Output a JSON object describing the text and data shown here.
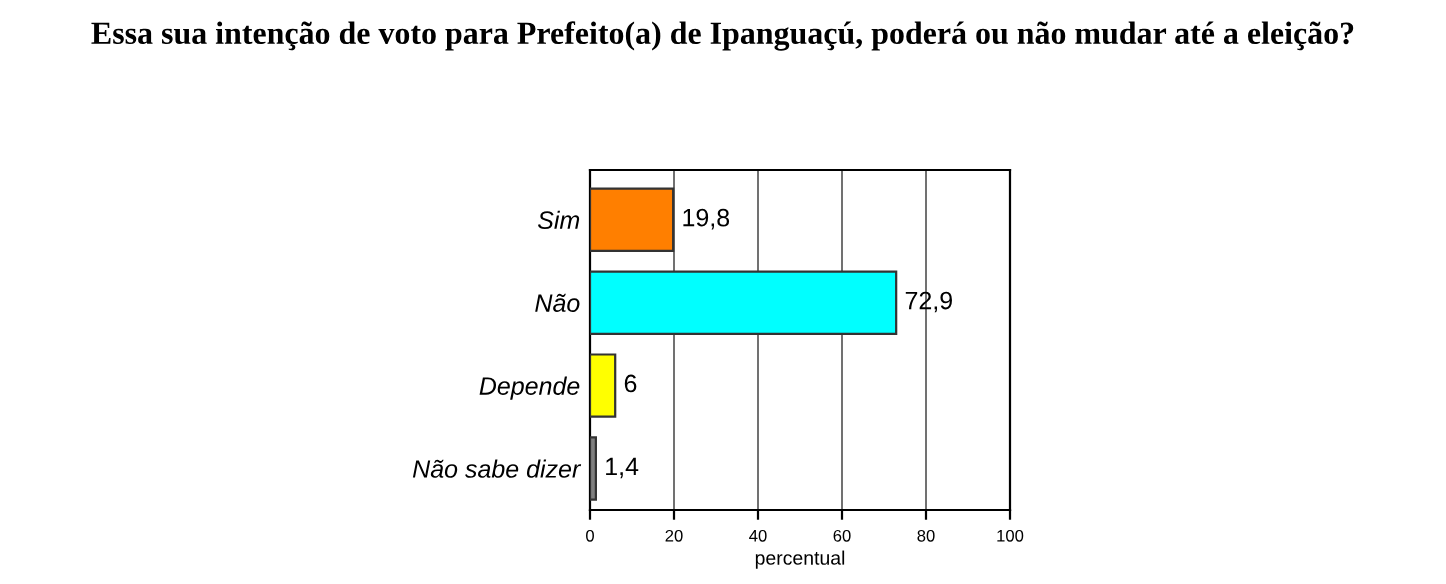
{
  "chart_data": {
    "type": "bar",
    "orientation": "horizontal",
    "title": "Essa sua intenção de voto para Prefeito(a) de Ipanguaçú, poderá ou não mudar até a eleição?",
    "xlabel": "percentual",
    "categories": [
      "Sim",
      "Não",
      "Depende",
      "Não sabe dizer"
    ],
    "values": [
      19.8,
      72.9,
      6,
      1.4
    ],
    "value_labels": [
      "19,8",
      "72,9",
      "6",
      "1,4"
    ],
    "colors": [
      "#ff7f00",
      "#00ffff",
      "#ffff00",
      "#808080"
    ],
    "xlim": [
      0,
      100
    ],
    "xticks": [
      0,
      20,
      40,
      60,
      80,
      100
    ],
    "grid": "x"
  }
}
